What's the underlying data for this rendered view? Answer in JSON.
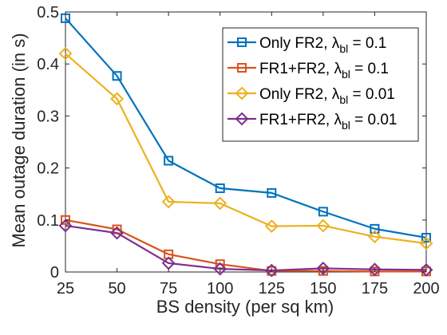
{
  "chart_data": {
    "type": "line",
    "xlabel": "BS density (per sq km)",
    "ylabel": "Mean outage duration (in s)",
    "x": [
      25,
      50,
      75,
      100,
      125,
      150,
      175,
      200
    ],
    "xlim": [
      25,
      200
    ],
    "ylim": [
      0,
      0.5
    ],
    "xticks": [
      "25",
      "50",
      "75",
      "100",
      "125",
      "150",
      "175",
      "200"
    ],
    "yticks": [
      "0",
      "0.1",
      "0.2",
      "0.3",
      "0.4",
      "0.5"
    ],
    "grid": false,
    "legend_position": "top-right",
    "series": [
      {
        "name": "Only FR2, λ",
        "sub": "bl",
        "tail": " = 0.1",
        "marker": "square",
        "color": "#0072BD",
        "values": [
          0.488,
          0.377,
          0.214,
          0.161,
          0.152,
          0.116,
          0.083,
          0.066
        ]
      },
      {
        "name": "FR1+FR2, λ",
        "sub": "bl",
        "tail": " = 0.1",
        "marker": "square",
        "color": "#D95319",
        "values": [
          0.1,
          0.082,
          0.034,
          0.015,
          0.002,
          0.002,
          0.001,
          0.001
        ]
      },
      {
        "name": "Only FR2, λ",
        "sub": "bl",
        "tail": " = 0.01",
        "marker": "diamond",
        "color": "#EDB120",
        "values": [
          0.42,
          0.333,
          0.135,
          0.132,
          0.088,
          0.089,
          0.068,
          0.055
        ]
      },
      {
        "name": "FR1+FR2, λ",
        "sub": "bl",
        "tail": " = 0.01",
        "marker": "diamond",
        "color": "#7E2F8E",
        "values": [
          0.089,
          0.075,
          0.017,
          0.006,
          0.003,
          0.007,
          0.005,
          0.004
        ]
      }
    ]
  }
}
